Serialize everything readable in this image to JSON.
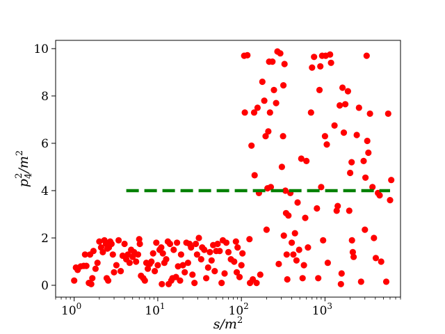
{
  "chart_data": {
    "type": "scatter",
    "xscale": "log",
    "xlim": [
      0.6,
      8000
    ],
    "ylim": [
      -0.5,
      10.35
    ],
    "xlabel": {
      "base": "s/m",
      "sup": "2"
    },
    "ylabel": {
      "base": "p",
      "sub": "4",
      "sup": "2",
      "tail": "/m",
      "tail_sup": "2"
    },
    "x_ticks": [
      {
        "value": 1,
        "base": "10",
        "exp": "0"
      },
      {
        "value": 10,
        "base": "10",
        "exp": "1"
      },
      {
        "value": 100,
        "base": "10",
        "exp": "2"
      },
      {
        "value": 1000,
        "base": "10",
        "exp": "3"
      }
    ],
    "y_ticks": [
      {
        "value": 0,
        "label": "0"
      },
      {
        "value": 2,
        "label": "2"
      },
      {
        "value": 4,
        "label": "4"
      },
      {
        "value": 6,
        "label": "6"
      },
      {
        "value": 8,
        "label": "8"
      },
      {
        "value": 10,
        "label": "10"
      }
    ],
    "grid": false,
    "colors": {
      "points": "#ff0000",
      "threshold": "#008000"
    },
    "threshold_line": {
      "x": [
        4.2,
        6000
      ],
      "y": 4.0,
      "style": "dashed"
    },
    "points": [
      [
        1.0,
        0.2
      ],
      [
        1.05,
        0.75
      ],
      [
        1.1,
        0.65
      ],
      [
        1.2,
        0.8
      ],
      [
        1.3,
        0.82
      ],
      [
        1.35,
        1.3
      ],
      [
        1.4,
        0.82
      ],
      [
        1.5,
        0.1
      ],
      [
        1.55,
        1.3
      ],
      [
        1.6,
        0.05
      ],
      [
        1.65,
        0.3
      ],
      [
        1.7,
        1.45
      ],
      [
        1.8,
        0.7
      ],
      [
        1.9,
        0.95
      ],
      [
        2.0,
        1.85
      ],
      [
        2.1,
        1.6
      ],
      [
        2.2,
        1.4
      ],
      [
        2.3,
        1.9
      ],
      [
        2.4,
        1.75
      ],
      [
        2.45,
        0.3
      ],
      [
        2.5,
        1.55
      ],
      [
        2.55,
        0.2
      ],
      [
        2.6,
        1.6
      ],
      [
        2.7,
        1.85
      ],
      [
        2.8,
        1.75
      ],
      [
        2.9,
        1.3
      ],
      [
        3.0,
        0.55
      ],
      [
        3.2,
        0.85
      ],
      [
        3.4,
        1.9
      ],
      [
        3.6,
        0.6
      ],
      [
        3.8,
        1.25
      ],
      [
        4.0,
        1.75
      ],
      [
        4.2,
        1.1
      ],
      [
        4.4,
        1.3
      ],
      [
        4.6,
        0.95
      ],
      [
        4.8,
        1.5
      ],
      [
        5.0,
        1.2
      ],
      [
        5.2,
        1.4
      ],
      [
        5.5,
        1.0
      ],
      [
        5.8,
        1.3
      ],
      [
        6.0,
        1.95
      ],
      [
        6.1,
        1.75
      ],
      [
        6.3,
        0.4
      ],
      [
        6.7,
        0.3
      ],
      [
        7.0,
        0.2
      ],
      [
        7.3,
        0.95
      ],
      [
        7.6,
        0.7
      ],
      [
        8.0,
        0.9
      ],
      [
        8.4,
        1.0
      ],
      [
        8.8,
        1.35
      ],
      [
        9.2,
        0.6
      ],
      [
        9.6,
        1.8
      ],
      [
        10.0,
        0.85
      ],
      [
        10.5,
        1.5
      ],
      [
        11.0,
        1.6
      ],
      [
        11.2,
        0.05
      ],
      [
        11.5,
        1.35
      ],
      [
        12.0,
        0.95
      ],
      [
        12.6,
        1.1
      ],
      [
        13.2,
        1.85
      ],
      [
        13.5,
        0.05
      ],
      [
        14.0,
        1.75
      ],
      [
        14.5,
        0.2
      ],
      [
        15.0,
        0.3
      ],
      [
        15.5,
        1.5
      ],
      [
        16.5,
        0.35
      ],
      [
        17.0,
        1.8
      ],
      [
        17.5,
        0.8
      ],
      [
        18.5,
        0.2
      ],
      [
        19.0,
        1.3
      ],
      [
        20.0,
        0.85
      ],
      [
        21.0,
        0.55
      ],
      [
        22.0,
        1.8
      ],
      [
        23.0,
        0.95
      ],
      [
        24.0,
        1.75
      ],
      [
        25.0,
        1.6
      ],
      [
        26.0,
        0.45
      ],
      [
        27.5,
        0.1
      ],
      [
        28.5,
        1.75
      ],
      [
        29.5,
        1.3
      ],
      [
        31.0,
        2.0
      ],
      [
        33.0,
        1.1
      ],
      [
        34.0,
        1.6
      ],
      [
        36.0,
        1.5
      ],
      [
        38.0,
        0.3
      ],
      [
        40.0,
        0.75
      ],
      [
        42.0,
        1.4
      ],
      [
        44.0,
        1.05
      ],
      [
        46.0,
        1.7
      ],
      [
        48.0,
        0.6
      ],
      [
        50.0,
        1.45
      ],
      [
        52.0,
        1.75
      ],
      [
        55.0,
        1.45
      ],
      [
        58.0,
        0.1
      ],
      [
        60.0,
        1.9
      ],
      [
        63.0,
        0.5
      ],
      [
        66.0,
        1.8
      ],
      [
        70.0,
        1.4
      ],
      [
        75.0,
        1.1
      ],
      [
        82.0,
        1.0
      ],
      [
        86.0,
        1.85
      ],
      [
        88.0,
        0.55
      ],
      [
        90.0,
        1.6
      ],
      [
        95.0,
        0.35
      ],
      [
        100.0,
        0.85
      ],
      [
        103.0,
        1.35
      ],
      [
        108.0,
        9.7
      ],
      [
        110.0,
        7.3
      ],
      [
        118.0,
        9.72
      ],
      [
        125.0,
        1.95
      ],
      [
        127.0,
        0.1
      ],
      [
        132.0,
        5.9
      ],
      [
        137.0,
        0.25
      ],
      [
        142.0,
        7.3
      ],
      [
        144.0,
        4.65
      ],
      [
        152.0,
        0.1
      ],
      [
        156.0,
        7.5
      ],
      [
        162.0,
        3.9
      ],
      [
        168.0,
        0.45
      ],
      [
        178.0,
        8.6
      ],
      [
        188.0,
        7.8
      ],
      [
        195.0,
        6.3
      ],
      [
        200.0,
        2.35
      ],
      [
        205.0,
        4.1
      ],
      [
        210.0,
        6.5
      ],
      [
        215.0,
        9.45
      ],
      [
        220.0,
        7.3
      ],
      [
        225.0,
        4.15
      ],
      [
        235.0,
        9.45
      ],
      [
        245.0,
        8.25
      ],
      [
        260.0,
        7.7
      ],
      [
        270.0,
        9.88
      ],
      [
        280.0,
        0.9
      ],
      [
        292.0,
        9.8
      ],
      [
        305.0,
        5.0
      ],
      [
        315.0,
        6.3
      ],
      [
        318.0,
        8.45
      ],
      [
        322.0,
        2.1
      ],
      [
        328.0,
        9.35
      ],
      [
        336.0,
        4.0
      ],
      [
        342.0,
        3.05
      ],
      [
        348.0,
        1.3
      ],
      [
        354.0,
        0.25
      ],
      [
        365.0,
        2.95
      ],
      [
        385.0,
        3.9
      ],
      [
        400.0,
        1.8
      ],
      [
        418.0,
        1.3
      ],
      [
        437.0,
        2.2
      ],
      [
        456.0,
        1.05
      ],
      [
        470.0,
        3.5
      ],
      [
        490.0,
        1.5
      ],
      [
        520.0,
        5.35
      ],
      [
        540.0,
        0.3
      ],
      [
        560.0,
        0.85
      ],
      [
        580.0,
        2.85
      ],
      [
        600.0,
        5.25
      ],
      [
        625.0,
        1.6
      ],
      [
        680.0,
        7.3
      ],
      [
        700.0,
        9.2
      ],
      [
        740.0,
        9.65
      ],
      [
        800.0,
        3.25
      ],
      [
        830.0,
        0.3
      ],
      [
        860.0,
        8.25
      ],
      [
        880.0,
        9.25
      ],
      [
        900.0,
        4.15
      ],
      [
        925.0,
        9.7
      ],
      [
        950.0,
        1.9
      ],
      [
        1000.0,
        6.3
      ],
      [
        1020.0,
        9.7
      ],
      [
        1050.0,
        5.95
      ],
      [
        1080.0,
        0.95
      ],
      [
        1150.0,
        9.75
      ],
      [
        1180.0,
        9.4
      ],
      [
        1300.0,
        6.75
      ],
      [
        1380.0,
        3.15
      ],
      [
        1420.0,
        3.35
      ],
      [
        1500.0,
        7.6
      ],
      [
        1550.0,
        0.05
      ],
      [
        1580.0,
        0.5
      ],
      [
        1620.0,
        8.35
      ],
      [
        1680.0,
        6.45
      ],
      [
        1750.0,
        7.65
      ],
      [
        1880.0,
        8.2
      ],
      [
        1950.0,
        3.15
      ],
      [
        2000.0,
        4.75
      ],
      [
        2080.0,
        5.2
      ],
      [
        2100.0,
        1.9
      ],
      [
        2150.0,
        1.4
      ],
      [
        2200.0,
        1.2
      ],
      [
        2400.0,
        6.35
      ],
      [
        2550.0,
        7.5
      ],
      [
        2700.0,
        0.15
      ],
      [
        2900.0,
        5.25
      ],
      [
        3000.0,
        2.35
      ],
      [
        3050.0,
        4.55
      ],
      [
        3150.0,
        9.7
      ],
      [
        3200.0,
        6.1
      ],
      [
        3300.0,
        5.6
      ],
      [
        3450.0,
        7.25
      ],
      [
        3700.0,
        4.15
      ],
      [
        3850.0,
        2.0
      ],
      [
        4050.0,
        1.15
      ],
      [
        4300.0,
        3.9
      ],
      [
        4500.0,
        3.8
      ],
      [
        4700.0,
        1.0
      ],
      [
        5400.0,
        0.15
      ],
      [
        5700.0,
        7.25
      ],
      [
        6000.0,
        3.6
      ],
      [
        6200.0,
        4.45
      ]
    ]
  }
}
